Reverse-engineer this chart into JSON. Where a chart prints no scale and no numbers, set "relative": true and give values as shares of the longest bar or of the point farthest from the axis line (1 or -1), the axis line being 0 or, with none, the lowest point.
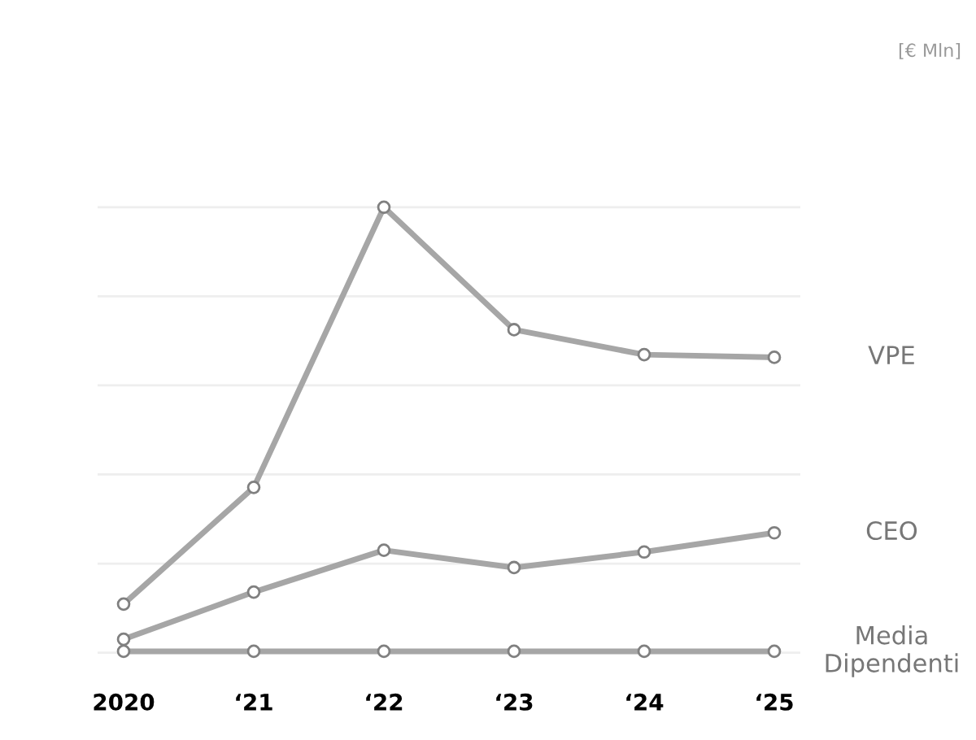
{
  "chart_data": {
    "type": "line",
    "relative": true,
    "annotations": [
      "[€ Mln]"
    ],
    "categories": [
      "2020",
      "‘21",
      "‘22",
      "‘23",
      "‘24",
      "‘25"
    ],
    "series": [
      {
        "name": "VPE",
        "color": "#a6a6a6",
        "values": [
          0.109,
          0.371,
          1,
          0.725,
          0.669,
          0.663
        ]
      },
      {
        "name": "CEO",
        "color": "#a6a6a6",
        "values": [
          0.03,
          0.136,
          0.23,
          0.191,
          0.226,
          0.269
        ]
      },
      {
        "name": "Media\nDipendenti",
        "color": "#a6a6a6",
        "values": [
          0.003,
          0.003,
          0.003,
          0.003,
          0.003,
          0.003
        ]
      }
    ],
    "grid": "y",
    "marker": "circle",
    "line_style": "solid",
    "legend": false
  }
}
